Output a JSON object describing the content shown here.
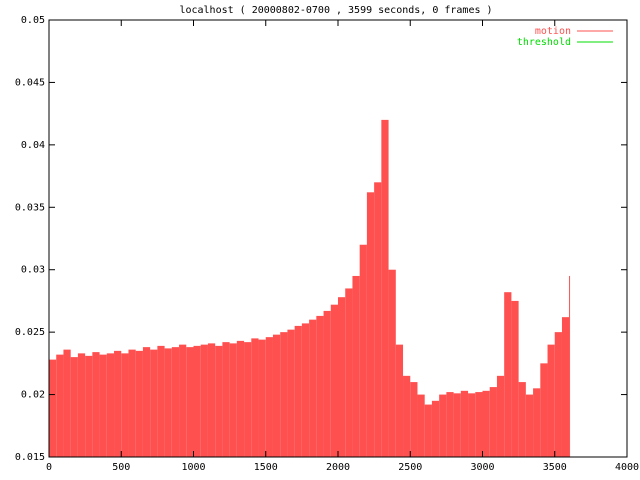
{
  "chart_data": {
    "type": "impulse",
    "title": "localhost ( 20000802-0700 , 3599 seconds, 0 frames )",
    "xlim": [
      0,
      4000
    ],
    "xticks": [
      0,
      500,
      1000,
      1500,
      2000,
      2500,
      3000,
      3500,
      4000
    ],
    "ylim": [
      0.015,
      0.05
    ],
    "yticks": [
      0.015,
      0.02,
      0.025,
      0.03,
      0.035,
      0.04,
      0.045,
      0.05
    ],
    "grid": false,
    "legend": "top-right",
    "series": [
      {
        "name": "motion",
        "color": "#ff5050",
        "x": [
          0,
          50,
          100,
          150,
          200,
          250,
          300,
          350,
          400,
          450,
          500,
          550,
          600,
          650,
          700,
          750,
          800,
          850,
          900,
          950,
          1000,
          1050,
          1100,
          1150,
          1200,
          1250,
          1300,
          1350,
          1400,
          1450,
          1500,
          1550,
          1600,
          1650,
          1700,
          1750,
          1800,
          1850,
          1900,
          1950,
          2000,
          2050,
          2100,
          2150,
          2200,
          2250,
          2300,
          2350,
          2400,
          2450,
          2500,
          2550,
          2600,
          2650,
          2700,
          2750,
          2800,
          2850,
          2900,
          2950,
          3000,
          3050,
          3100,
          3150,
          3200,
          3250,
          3300,
          3350,
          3400,
          3450,
          3500,
          3550,
          3599
        ],
        "values": [
          0.0228,
          0.0232,
          0.0236,
          0.023,
          0.0233,
          0.0231,
          0.0234,
          0.0232,
          0.0233,
          0.0235,
          0.0233,
          0.0236,
          0.0235,
          0.0238,
          0.0236,
          0.0239,
          0.0237,
          0.0238,
          0.024,
          0.0238,
          0.0239,
          0.024,
          0.0241,
          0.0239,
          0.0242,
          0.0241,
          0.0243,
          0.0242,
          0.0245,
          0.0244,
          0.0246,
          0.0248,
          0.025,
          0.0252,
          0.0255,
          0.0257,
          0.026,
          0.0263,
          0.0267,
          0.0272,
          0.0278,
          0.0285,
          0.0295,
          0.032,
          0.0362,
          0.037,
          0.042,
          0.03,
          0.024,
          0.0215,
          0.021,
          0.02,
          0.0192,
          0.0195,
          0.02,
          0.0202,
          0.0201,
          0.0203,
          0.0201,
          0.0202,
          0.0203,
          0.0206,
          0.0215,
          0.0282,
          0.0275,
          0.021,
          0.02,
          0.0205,
          0.0225,
          0.024,
          0.025,
          0.0262,
          0.0295
        ]
      },
      {
        "name": "threshold",
        "color": "#00dd00",
        "x": [
          0,
          3599
        ],
        "values": [
          0.05,
          0.05
        ]
      }
    ]
  }
}
